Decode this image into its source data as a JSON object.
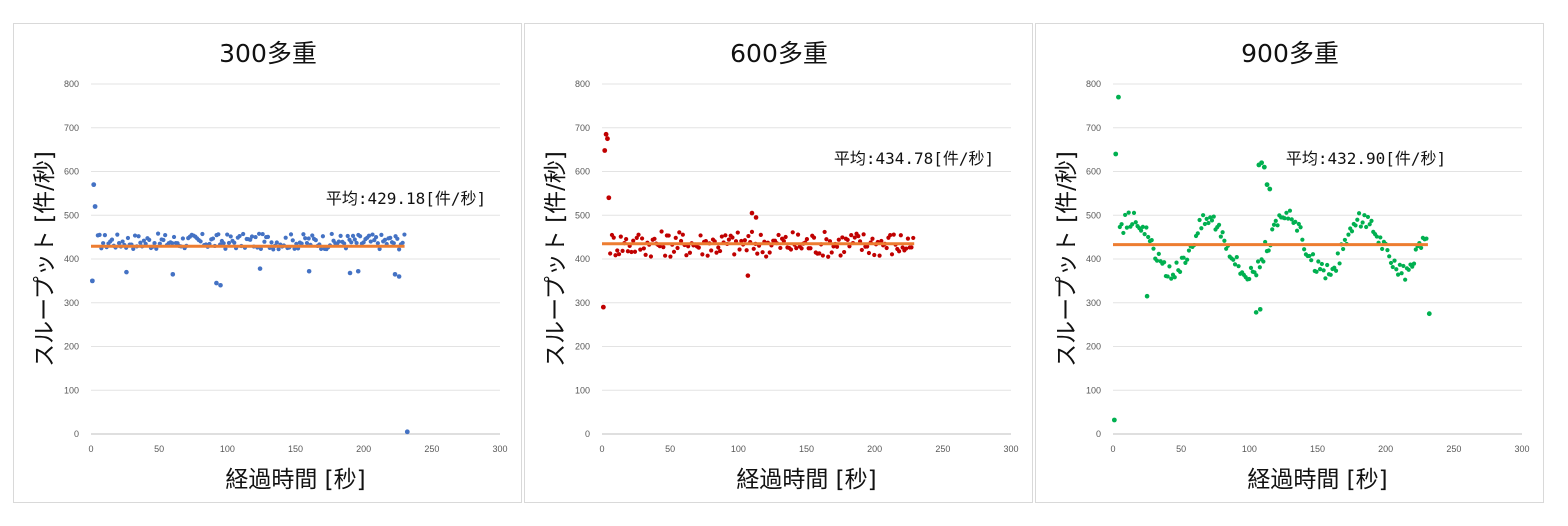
{
  "chart_data": [
    {
      "type": "scatter",
      "title": "300多重",
      "xlabel": "経過時間 [秒]",
      "ylabel": "スループット [件/秒]",
      "xlim": [
        0,
        300
      ],
      "ylim": [
        0,
        800
      ],
      "xticks": [
        "0",
        "50",
        "100",
        "150",
        "200",
        "250",
        "300"
      ],
      "yticks": [
        "0",
        "100",
        "200",
        "300",
        "400",
        "500",
        "600",
        "700",
        "800"
      ],
      "grid": true,
      "marker_color": "#4472c4",
      "average_line_color": "#ed7d31",
      "average": 429.18,
      "average_label": "平均:429.18[件/秒]",
      "x": [
        1,
        2,
        3,
        232
      ],
      "y": [
        350,
        570,
        520,
        5
      ],
      "band": {
        "x_start": 5,
        "x_end": 230,
        "center": 440,
        "spread": 18,
        "dips": [
          [
            26,
            370
          ],
          [
            60,
            365
          ],
          [
            92,
            345
          ],
          [
            95,
            340
          ],
          [
            124,
            378
          ],
          [
            160,
            372
          ],
          [
            190,
            368
          ],
          [
            196,
            372
          ],
          [
            223,
            365
          ],
          [
            226,
            360
          ]
        ]
      }
    },
    {
      "type": "scatter",
      "title": "600多重",
      "xlabel": "経過時間 [秒]",
      "ylabel": "スループット [件/秒]",
      "xlim": [
        0,
        300
      ],
      "ylim": [
        0,
        800
      ],
      "xticks": [
        "0",
        "50",
        "100",
        "150",
        "200",
        "250",
        "300"
      ],
      "yticks": [
        "0",
        "100",
        "200",
        "300",
        "400",
        "500",
        "600",
        "700",
        "800"
      ],
      "grid": true,
      "marker_color": "#c00000",
      "average_line_color": "#ed7d31",
      "average": 434.78,
      "average_label": "平均:434.78[件/秒]",
      "x": [
        1,
        2,
        3,
        4,
        5
      ],
      "y": [
        290,
        648,
        685,
        675,
        540
      ],
      "band": {
        "x_start": 6,
        "x_end": 229,
        "center": 435,
        "spread": 30,
        "dips": [
          [
            107,
            362
          ],
          [
            110,
            505
          ],
          [
            113,
            495
          ]
        ]
      }
    },
    {
      "type": "scatter",
      "title": "900多重",
      "xlabel": "経過時間 [秒]",
      "ylabel": "スループット [件/秒]",
      "xlim": [
        0,
        300
      ],
      "ylim": [
        0,
        800
      ],
      "xticks": [
        "0",
        "50",
        "100",
        "150",
        "200",
        "250",
        "300"
      ],
      "yticks": [
        "0",
        "100",
        "200",
        "300",
        "400",
        "500",
        "600",
        "700",
        "800"
      ],
      "grid": true,
      "marker_color": "#00b050",
      "average_line_color": "#ed7d31",
      "average": 432.9,
      "average_label": "平均:432.90[件/秒]",
      "x": [
        1,
        2,
        4,
        107,
        109,
        111,
        113,
        115,
        232
      ],
      "y": [
        32,
        640,
        770,
        615,
        620,
        610,
        570,
        560,
        275
      ],
      "band": {
        "x_start": 5,
        "x_end": 231,
        "center": 430,
        "spread": 70,
        "dips": [
          [
            25,
            315
          ],
          [
            105,
            278
          ],
          [
            108,
            285
          ]
        ]
      }
    }
  ]
}
